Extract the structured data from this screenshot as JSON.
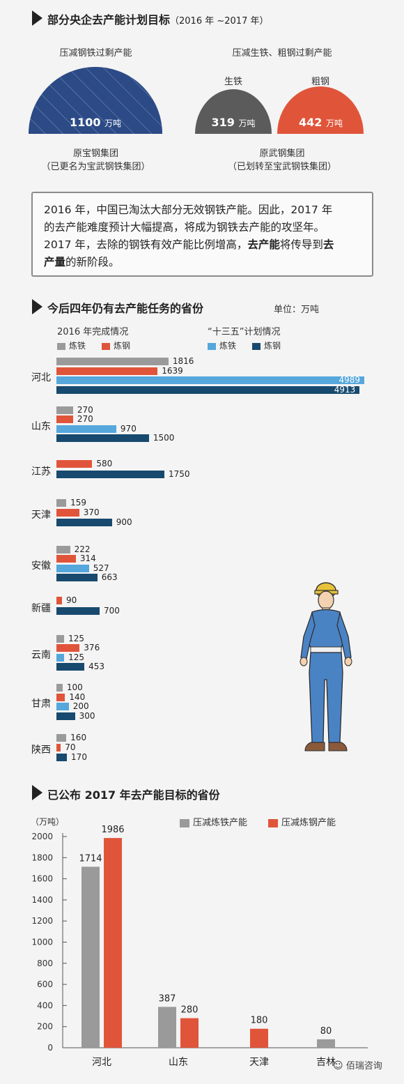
{
  "section1": {
    "title": "部分央企去产能计划目标",
    "subtitle": "（2016 年 ~2017 年）",
    "left": {
      "caption": "压减钢铁过剩产能",
      "value": "1100",
      "unit": "万吨",
      "company_line1": "原宝钢集团",
      "company_line2": "（已更名为宝武钢铁集团）",
      "color": "#2b4a86"
    },
    "right": {
      "caption": "压减生铁、粗钢过剩产能",
      "items": [
        {
          "label": "生铁",
          "value": "319",
          "unit": "万吨",
          "color": "#5b5b5b"
        },
        {
          "label": "粗钢",
          "value": "442",
          "unit": "万吨",
          "color": "#e0553a"
        }
      ],
      "company_line1": "原武钢集团",
      "company_line2": "（已划转至宝武钢铁集团）"
    }
  },
  "note": {
    "line1": "2016 年，中国已淘汰大部分无效钢铁产能。因此，2017 年",
    "line2": "的去产能难度预计大幅提高，将成为钢铁去产能的攻坚年。",
    "line3a": "2017 年，去除的钢铁有效产能比例增高，",
    "line3b": "去产能",
    "line3c": "将传导到",
    "line3d": "去",
    "line4a": "产量",
    "line4b": "的新阶段。"
  },
  "section2": {
    "title": "今后四年仍有去产能任务的省份",
    "unit": "单位：万吨",
    "legend_group1": "2016 年完成情况",
    "legend_group2": "“十三五”计划情况",
    "legend_items": [
      "炼铁",
      "炼钢",
      "炼铁",
      "炼钢"
    ],
    "colors": [
      "#9a9a9a",
      "#e0553a",
      "#55a7dc",
      "#174a6e"
    ]
  },
  "chart_data": [
    {
      "type": "bar",
      "title": "今后四年仍有去产能任务的省份",
      "unit": "单位：万吨",
      "categories": [
        "河北",
        "山东",
        "江苏",
        "天津",
        "安徽",
        "新疆",
        "云南",
        "甘肃",
        "陕西"
      ],
      "series": [
        {
          "name": "2016年完成情况 炼铁",
          "values": [
            1816,
            270,
            null,
            159,
            222,
            null,
            125,
            100,
            160
          ]
        },
        {
          "name": "2016年完成情况 炼钢",
          "values": [
            1639,
            270,
            580,
            370,
            314,
            90,
            376,
            140,
            70
          ]
        },
        {
          "name": "“十三五”计划情况 炼铁",
          "values": [
            4989,
            970,
            null,
            null,
            527,
            null,
            125,
            200,
            null
          ]
        },
        {
          "name": "“十三五”计划情况 炼钢",
          "values": [
            4913,
            1500,
            1750,
            900,
            663,
            700,
            453,
            300,
            170
          ]
        }
      ]
    },
    {
      "type": "bar",
      "title": "已公布 2017 年去产能目标的省份",
      "ylabel": "（万吨）",
      "ylim": [
        0,
        2000
      ],
      "yticks": [
        0,
        200,
        400,
        600,
        800,
        1000,
        1200,
        1400,
        1600,
        1800,
        2000
      ],
      "categories": [
        "河北",
        "山东",
        "天津",
        "吉林"
      ],
      "series": [
        {
          "name": "压减炼铁产能",
          "values": [
            1714,
            387,
            null,
            80
          ]
        },
        {
          "name": "压减炼钢产能",
          "values": [
            1986,
            280,
            180,
            null
          ]
        }
      ]
    }
  ],
  "section3": {
    "title": "已公布 2017 年去产能目标的省份",
    "ylabel": "（万吨）",
    "legend": [
      "压减炼铁产能",
      "压减炼钢产能"
    ],
    "colors": [
      "#9a9a9a",
      "#e0553a"
    ]
  },
  "watermark": "佰瑞咨询"
}
